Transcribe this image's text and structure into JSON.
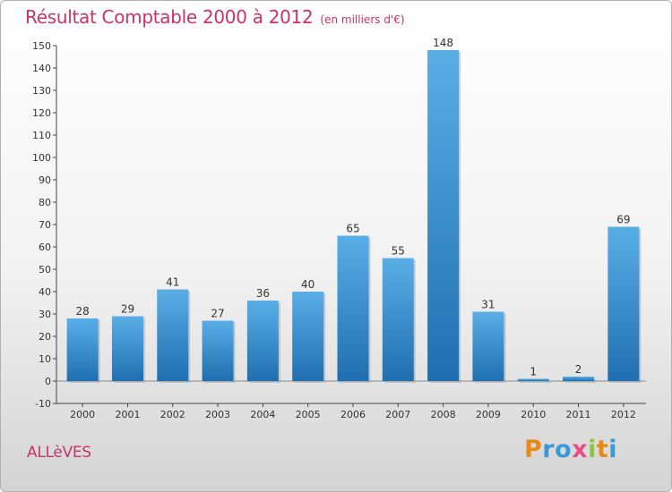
{
  "chart_data": {
    "type": "bar",
    "title": "Résultat Comptable 2000 à 2012",
    "subtitle": "(en milliers d'€)",
    "categories": [
      "2000",
      "2001",
      "2002",
      "2003",
      "2004",
      "2005",
      "2006",
      "2007",
      "2008",
      "2009",
      "2010",
      "2011",
      "2012"
    ],
    "values": [
      28,
      29,
      41,
      27,
      36,
      40,
      65,
      55,
      148,
      31,
      1,
      2,
      69
    ],
    "ylim": [
      -10,
      150
    ],
    "yticks": [
      -10,
      0,
      10,
      20,
      30,
      40,
      50,
      60,
      70,
      80,
      90,
      100,
      110,
      120,
      130,
      140,
      150
    ],
    "xlabel": "",
    "ylabel": "",
    "grid": false,
    "colors": {
      "bar_top": "#5aaee6",
      "bar_bottom": "#1f6fb0",
      "title": "#c8336a"
    }
  },
  "footer": {
    "commune": "ALLèVES",
    "brand_letters": [
      {
        "char": "P",
        "color": "#e8891c"
      },
      {
        "char": "r",
        "color": "#3a9ad9"
      },
      {
        "char": "o",
        "color": "#3a9ad9"
      },
      {
        "char": "x",
        "color": "#e84c8a"
      },
      {
        "char": "i",
        "color": "#8cc63f"
      },
      {
        "char": "t",
        "color": "#e8891c"
      },
      {
        "char": "i",
        "color": "#3a9ad9"
      }
    ]
  }
}
